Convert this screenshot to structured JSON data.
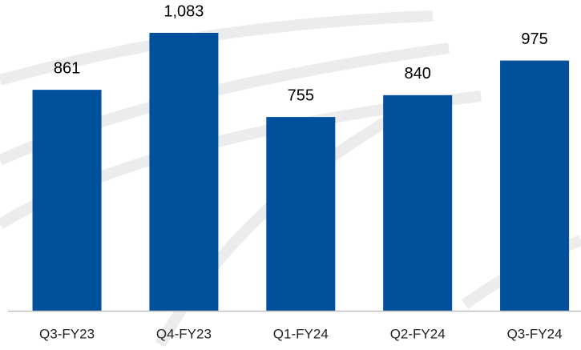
{
  "chart_data": {
    "type": "bar",
    "categories": [
      "Q3-FY23",
      "Q4-FY23",
      "Q1-FY24",
      "Q2-FY24",
      "Q3-FY24"
    ],
    "values": [
      861,
      1083,
      755,
      840,
      975
    ],
    "value_labels": [
      "861",
      "1,083",
      "755",
      "840",
      "975"
    ],
    "color": "#00509e"
  }
}
